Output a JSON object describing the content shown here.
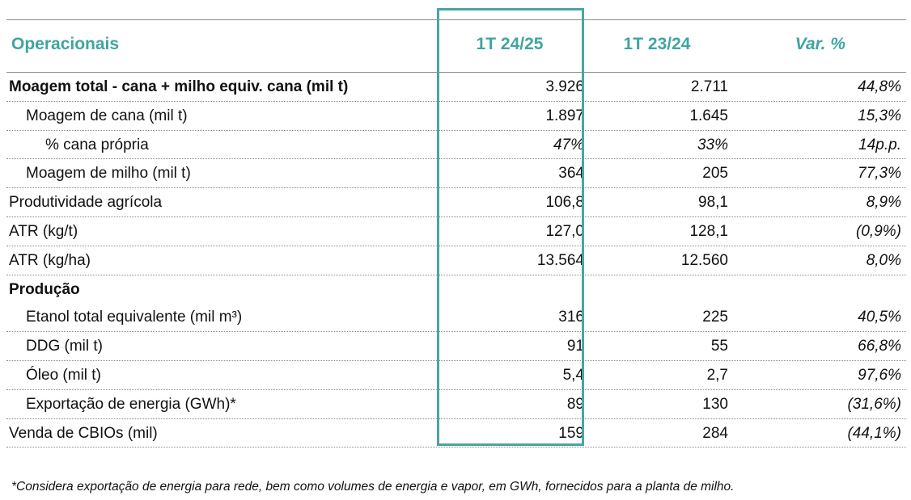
{
  "headers": {
    "label": "Operacionais",
    "col1": "1T 24/25",
    "col2": "1T 23/24",
    "col3": "Var. %"
  },
  "rows": [
    {
      "label": "Moagem total - cana + milho equiv. cana (mil t)",
      "c1": "3.926",
      "c2": "2.711",
      "c3": "44,8%"
    },
    {
      "label": "Moagem de cana (mil t)",
      "c1": "1.897",
      "c2": "1.645",
      "c3": "15,3%"
    },
    {
      "label": "% cana própria",
      "c1": "47%",
      "c2": "33%",
      "c3": "14p.p."
    },
    {
      "label": "Moagem de milho (mil t)",
      "c1": "364",
      "c2": "205",
      "c3": "77,3%"
    },
    {
      "label": "Produtividade agrícola",
      "c1": "106,8",
      "c2": "98,1",
      "c3": "8,9%"
    },
    {
      "label": "ATR (kg/t)",
      "c1": "127,0",
      "c2": "128,1",
      "c3": "(0,9%)"
    },
    {
      "label": "ATR (kg/ha)",
      "c1": "13.564",
      "c2": "12.560",
      "c3": "8,0%"
    },
    {
      "label": "Produção"
    },
    {
      "label": "Etanol total equivalente (mil m³)",
      "c1": "316",
      "c2": "225",
      "c3": "40,5%"
    },
    {
      "label": "DDG (mil t)",
      "c1": "91",
      "c2": "55",
      "c3": "66,8%"
    },
    {
      "label": "Óleo (mil t)",
      "c1": "5,4",
      "c2": "2,7",
      "c3": "97,6%"
    },
    {
      "label": "Exportação de energia (GWh)*",
      "c1": "89",
      "c2": "130",
      "c3": "(31,6%)"
    },
    {
      "label": "Venda de CBIOs (mil)",
      "c1": "159",
      "c2": "284",
      "c3": "(44,1%)"
    }
  ],
  "footnote": "*Considera exportação de energia para rede, bem como volumes de energia e vapor, em GWh, fornecidos para a planta de milho.",
  "colors": {
    "accent": "#3fa5a0",
    "highlight_border": "#4aa5a1"
  }
}
